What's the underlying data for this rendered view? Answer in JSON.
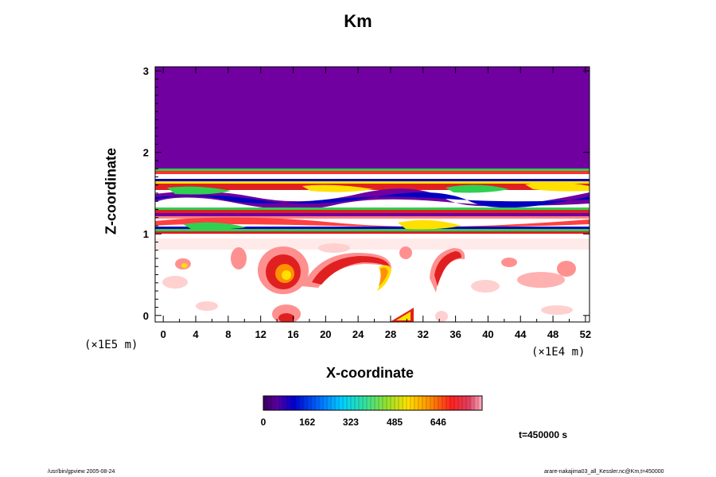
{
  "chart_data": {
    "type": "heatmap",
    "title": "Km",
    "xlabel": "X-coordinate",
    "ylabel": "Z-coordinate",
    "x_scale_unit": "(×1E4 m)",
    "y_scale_unit": "(×1E5 m)",
    "xlim": [
      -1,
      52.5
    ],
    "ylim": [
      -0.08,
      3.05
    ],
    "x_ticks": [
      "0",
      "4",
      "8",
      "12",
      "16",
      "20",
      "24",
      "28",
      "32",
      "36",
      "40",
      "44",
      "48",
      "52"
    ],
    "y_ticks": [
      "0",
      "1",
      "2",
      "3"
    ],
    "colorbar_ticks": [
      "0",
      "162",
      "323",
      "485",
      "646"
    ],
    "colorbar_range": [
      0,
      808
    ],
    "time_label": "t=450000 s",
    "regions": [
      {
        "name": "upper-uniform",
        "x": [
          -1,
          52.5
        ],
        "z": [
          1.8,
          3.05
        ],
        "level": "min"
      },
      {
        "name": "upper-turbulent-band",
        "x": [
          -1,
          52.5
        ],
        "z": [
          1.3,
          1.8
        ],
        "level": "variable"
      },
      {
        "name": "mid-turbulent-band",
        "x": [
          -1,
          52.5
        ],
        "z": [
          1.0,
          1.3
        ],
        "level": "variable"
      },
      {
        "name": "eddy-1",
        "x": 14.5,
        "z": 0.55,
        "level": "high"
      },
      {
        "name": "eddy-2",
        "x": 25,
        "z": 0.55,
        "level": "high"
      },
      {
        "name": "eddy-3",
        "x": 35.5,
        "z": 0.55,
        "level": "high"
      },
      {
        "name": "surface-spot",
        "x": 29,
        "z": 0.0,
        "level": "high"
      }
    ],
    "colors": {
      "background_purple": "#7000a0",
      "dark_blue": "#0000c0",
      "green": "#30d050",
      "yellow": "#ffe000",
      "red": "#e02020",
      "pink": "#ff9090",
      "light_pink": "#ffd0d0"
    }
  },
  "footer": {
    "left": "/usr/bin/gpview 2005-08-24",
    "right": "arare-nakajima03_all_Kessler.nc@Km,t=450000"
  }
}
